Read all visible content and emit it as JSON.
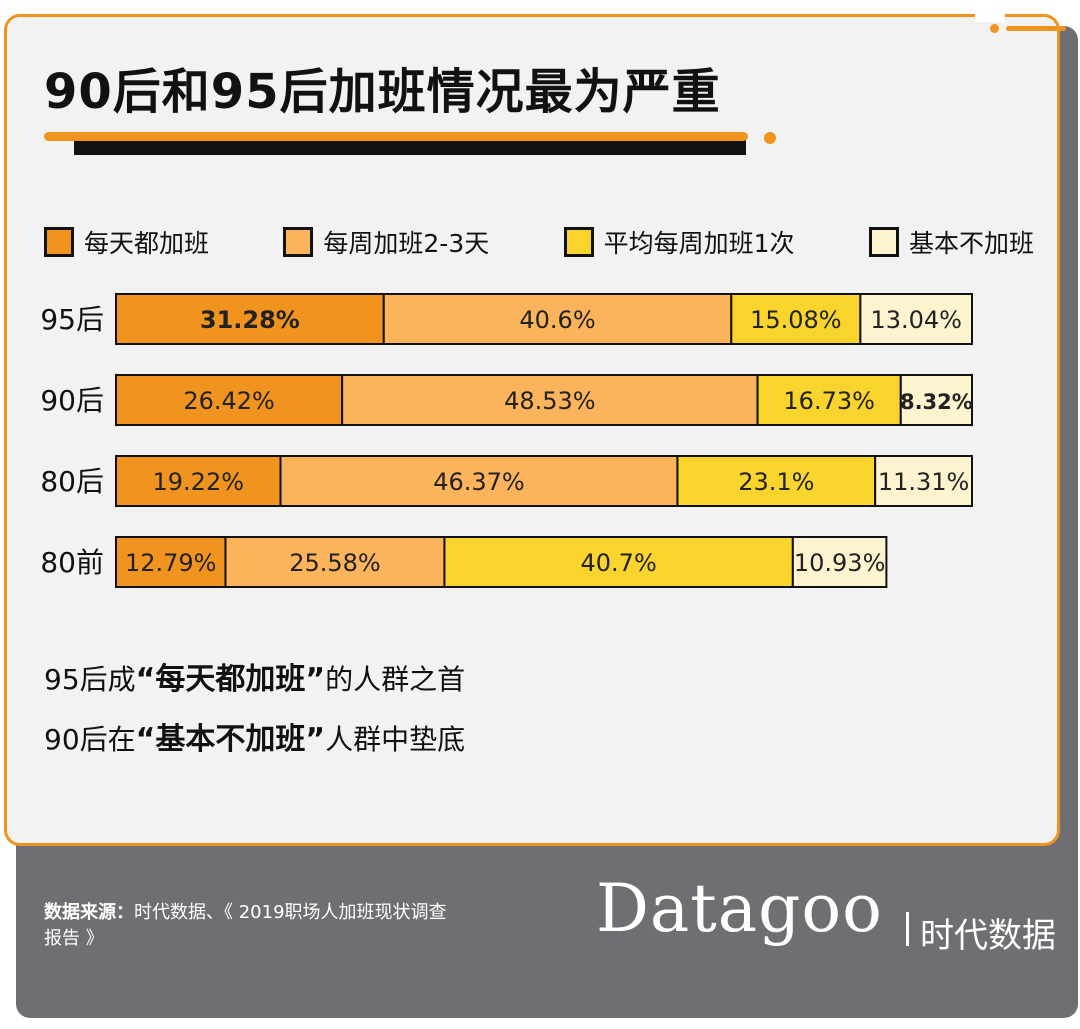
{
  "title": "90后和95后加班情况最为严重",
  "legend": [
    {
      "label": "每天都加班",
      "color": "#f0941f"
    },
    {
      "label": "每周加班2-3天",
      "color": "#fbb45c"
    },
    {
      "label": "平均每周加班1次",
      "color": "#f8d42c"
    },
    {
      "label": "基本不加班",
      "color": "#fdf3cf"
    }
  ],
  "chart_data": {
    "type": "bar",
    "orientation": "horizontal",
    "stacked": true,
    "categories": [
      "95后",
      "90后",
      "80后",
      "80前"
    ],
    "series": [
      {
        "name": "每天都加班",
        "values": [
          31.28,
          26.42,
          19.22,
          12.79
        ],
        "labels": [
          "31.28%",
          "26.42%",
          "19.22%",
          "12.79%"
        ]
      },
      {
        "name": "每周加班2-3天",
        "values": [
          40.6,
          48.53,
          46.37,
          25.58
        ],
        "labels": [
          "40.6%",
          "48.53%",
          "46.37%",
          "25.58%"
        ]
      },
      {
        "name": "平均每周加班1次",
        "values": [
          15.08,
          16.73,
          23.1,
          40.7
        ],
        "labels": [
          "15.08%",
          "16.73%",
          "23.1%",
          "40.7%"
        ]
      },
      {
        "name": "基本不加班",
        "values": [
          13.04,
          8.32,
          11.31,
          10.93
        ],
        "labels": [
          "13.04%",
          "8.32%",
          "11.31%",
          "10.93%"
        ]
      }
    ],
    "highlighted_labels": [
      "31.28%",
      "8.32%"
    ],
    "xlim": [
      0,
      100
    ],
    "grid": false,
    "legend_position": "top"
  },
  "notes": [
    {
      "pre": "95后成",
      "bold": "“每天都加班”",
      "post": "的人群之首"
    },
    {
      "pre": "90后在",
      "bold": "“基本不加班”",
      "post": "人群中垫底"
    }
  ],
  "source": {
    "label": "数据来源：",
    "text": "时代数据、《 2019职场人加班现状调查报告 》"
  },
  "brand": {
    "logo": "Datagoo",
    "subtitle": "时代数据"
  }
}
